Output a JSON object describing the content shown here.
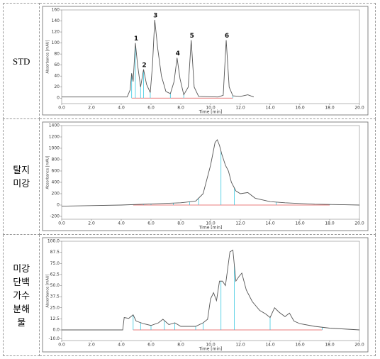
{
  "table": {
    "rows": [
      {
        "label": "STD",
        "chart_data": {
          "type": "line",
          "xlabel": "Time [min]",
          "ylabel": "Absorbance [mAU]",
          "color": "#555555",
          "xlim": [
            0,
            20
          ],
          "xticks": [
            {
              "value": 0,
              "label": "0.0"
            },
            {
              "value": 2,
              "label": "2.0"
            },
            {
              "value": 4,
              "label": "4.0"
            },
            {
              "value": 6,
              "label": "6.0"
            },
            {
              "value": 8,
              "label": "8.0"
            },
            {
              "value": 10,
              "label": "10.0"
            },
            {
              "value": 12,
              "label": "12.0"
            },
            {
              "value": 14,
              "label": "14.0"
            },
            {
              "value": 16,
              "label": "16.0"
            },
            {
              "value": 18,
              "label": "18.0"
            },
            {
              "value": 20,
              "label": "20.0"
            }
          ],
          "ylim": [
            -10,
            160
          ],
          "yticks": [
            0,
            20,
            40,
            60,
            80,
            100,
            120,
            140,
            160
          ],
          "x": [
            0,
            4.4,
            4.6,
            4.7,
            4.8,
            4.95,
            5.1,
            5.3,
            5.5,
            5.7,
            5.95,
            6.1,
            6.25,
            6.45,
            6.7,
            7.0,
            7.3,
            7.55,
            7.75,
            7.95,
            8.2,
            8.5,
            8.7,
            8.9,
            9.2,
            10.5,
            10.85,
            11.05,
            11.25,
            11.5,
            12.0,
            12.5,
            12.9
          ],
          "values": [
            2,
            2,
            15,
            45,
            30,
            100,
            60,
            20,
            52,
            25,
            10,
            60,
            142,
            90,
            40,
            12,
            8,
            30,
            73,
            35,
            6,
            20,
            105,
            20,
            3,
            2,
            5,
            105,
            20,
            4,
            3,
            6,
            2
          ],
          "markers": [
            4.7,
            4.95,
            5.3,
            5.5,
            5.95,
            7.3,
            8.2,
            11.5
          ],
          "peak_labels": [
            {
              "text": "1",
              "x": 4.95
            },
            {
              "text": "2",
              "x": 5.5
            },
            {
              "text": "3",
              "x": 6.25
            },
            {
              "text": "4",
              "x": 7.75
            },
            {
              "text": "5",
              "x": 8.7
            },
            {
              "text": "6",
              "x": 11.05
            }
          ]
        }
      },
      {
        "label": "탈지미강",
        "chart_data": {
          "type": "line",
          "xlabel": "Time [min]",
          "ylabel": "Absorbance [mAU]",
          "color": "#555555",
          "xlim": [
            0,
            20
          ],
          "xticks": [
            {
              "value": 0,
              "label": "0.0"
            },
            {
              "value": 2,
              "label": "2.0"
            },
            {
              "value": 4,
              "label": "4.0"
            },
            {
              "value": 6,
              "label": "6.0"
            },
            {
              "value": 8,
              "label": "8.0"
            },
            {
              "value": 10,
              "label": "10.0"
            },
            {
              "value": 12,
              "label": "12.0"
            },
            {
              "value": 14,
              "label": "14.0"
            },
            {
              "value": 16,
              "label": "16.0"
            },
            {
              "value": 18,
              "label": "18.0"
            },
            {
              "value": 20,
              "label": "20.0"
            }
          ],
          "ylim": [
            -250,
            1400
          ],
          "yticks": [
            -200,
            0,
            200,
            400,
            600,
            800,
            1000,
            1200,
            1400
          ],
          "x": [
            0,
            4,
            6,
            8,
            9,
            9.5,
            10,
            10.3,
            10.45,
            10.6,
            10.75,
            11,
            11.2,
            11.4,
            11.7,
            12,
            12.5,
            13,
            14,
            15,
            17,
            19,
            20
          ],
          "values": [
            -20,
            0,
            20,
            40,
            70,
            200,
            700,
            1100,
            1150,
            1050,
            900,
            700,
            600,
            400,
            250,
            200,
            220,
            120,
            60,
            40,
            15,
            5,
            0
          ],
          "markers": [
            4.8,
            5.5,
            6.0,
            7.5,
            8.6,
            9.2,
            10.7,
            11.6,
            14.4,
            18.0
          ]
        }
      },
      {
        "label": "미강단백가수분해물",
        "chart_data": {
          "type": "line",
          "xlabel": "Time [min]",
          "ylabel": "Absorbance [mAU]",
          "color": "#555555",
          "xlim": [
            0,
            20
          ],
          "xticks": [
            {
              "value": 0,
              "label": "0.0"
            },
            {
              "value": 2,
              "label": "2.0"
            },
            {
              "value": 4,
              "label": "4.0"
            },
            {
              "value": 6,
              "label": "6.0"
            },
            {
              "value": 8,
              "label": "8.0"
            },
            {
              "value": 10,
              "label": "10.0"
            },
            {
              "value": 12,
              "label": "12.0"
            },
            {
              "value": 14,
              "label": "14.0"
            },
            {
              "value": 16,
              "label": "16.0"
            },
            {
              "value": 18,
              "label": "18.0"
            },
            {
              "value": 20,
              "label": "20.0"
            }
          ],
          "ylim": [
            -12,
            100
          ],
          "yticks": [
            {
              "value": -10,
              "label": "-10.0"
            },
            {
              "value": 0,
              "label": "0.0"
            },
            {
              "value": 12.5,
              "label": "12.5"
            },
            {
              "value": 25,
              "label": "25.0"
            },
            {
              "value": 37.5,
              "label": "37.5"
            },
            {
              "value": 50,
              "label": "50.0"
            },
            {
              "value": 62.5,
              "label": "62.5"
            },
            {
              "value": 75,
              "label": "75.0"
            },
            {
              "value": 87.5,
              "label": "87.5"
            },
            {
              "value": 100,
              "label": "100.0"
            }
          ],
          "x": [
            0,
            4.1,
            4.2,
            4.5,
            4.8,
            5.0,
            5.5,
            6,
            6.5,
            6.8,
            7.2,
            7.6,
            8,
            9,
            9.5,
            9.8,
            10.0,
            10.2,
            10.4,
            10.6,
            10.8,
            11.0,
            11.3,
            11.5,
            11.7,
            11.9,
            12.1,
            12.4,
            12.8,
            13.3,
            13.7,
            14.0,
            14.3,
            14.6,
            15.0,
            15.3,
            15.6,
            16,
            17,
            18,
            20
          ],
          "values": [
            0,
            0,
            14,
            13,
            17,
            10,
            7,
            5,
            8,
            12,
            6,
            8,
            4,
            4,
            8,
            12,
            35,
            42,
            33,
            55,
            55,
            50,
            88,
            90,
            55,
            60,
            64,
            45,
            32,
            22,
            18,
            14,
            25,
            20,
            15,
            19,
            10,
            7,
            4,
            2,
            0
          ],
          "markers": [
            4.8,
            5.3,
            6.0,
            6.9,
            7.6,
            9.0,
            9.5,
            10.7,
            11.6,
            14.0,
            17.5
          ]
        }
      }
    ]
  }
}
